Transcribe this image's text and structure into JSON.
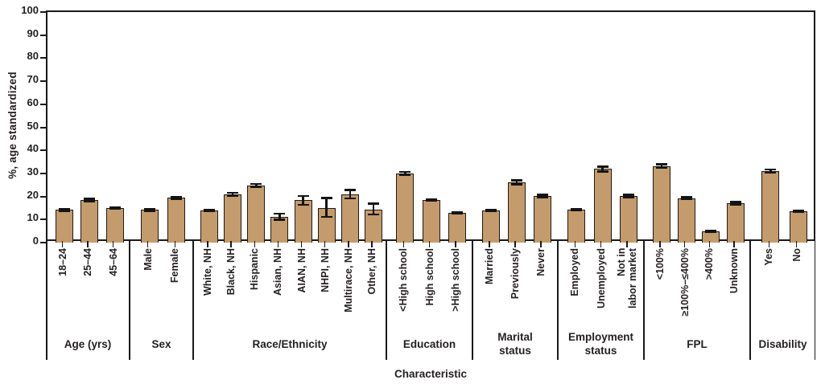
{
  "figure": {
    "bar_fill": "#c49b6c",
    "bar_outline": "#1f1a16",
    "error_color": "#141414",
    "axis_color": "#1a1a1a"
  },
  "chart_data": {
    "type": "bar",
    "title": "",
    "xlabel": "Characteristic",
    "ylabel": "%, age standardized",
    "ylim": [
      0,
      100
    ],
    "ytick_step": 10,
    "grid": false,
    "legend": false,
    "error_bars": true,
    "groups": [
      {
        "label": "Age (yrs)",
        "span": 104,
        "categories": [
          {
            "label": "18–24",
            "value": 14.2,
            "ci_low": 13.7,
            "ci_high": 14.7
          },
          {
            "label": "25–44",
            "value": 18.5,
            "ci_low": 18.0,
            "ci_high": 19.0
          },
          {
            "label": "45–64",
            "value": 15.1,
            "ci_low": 14.8,
            "ci_high": 15.4
          }
        ]
      },
      {
        "label": "Sex",
        "span": 79,
        "categories": [
          {
            "label": "Male",
            "value": 14.2,
            "ci_low": 13.8,
            "ci_high": 14.6
          },
          {
            "label": "Female",
            "value": 19.4,
            "ci_low": 19.0,
            "ci_high": 19.8
          }
        ]
      },
      {
        "label": "Race/Ethnicity",
        "span": 240,
        "categories": [
          {
            "label": "White, NH",
            "value": 13.9,
            "ci_low": 13.6,
            "ci_high": 14.2
          },
          {
            "label": "Black, NH",
            "value": 21.0,
            "ci_low": 20.4,
            "ci_high": 21.6
          },
          {
            "label": "Hispanic",
            "value": 24.8,
            "ci_low": 24.1,
            "ci_high": 25.5
          },
          {
            "label": "Asian, NH",
            "value": 11.1,
            "ci_low": 9.9,
            "ci_high": 12.6
          },
          {
            "label": "AIAN, NH",
            "value": 18.3,
            "ci_low": 16.4,
            "ci_high": 20.2
          },
          {
            "label": "NHPI, NH",
            "value": 14.9,
            "ci_low": 11.2,
            "ci_high": 19.3
          },
          {
            "label": "Multirace, NH",
            "value": 20.9,
            "ci_low": 19.2,
            "ci_high": 22.9
          },
          {
            "label": "Other, NH",
            "value": 14.2,
            "ci_low": 12.2,
            "ci_high": 16.9
          }
        ]
      },
      {
        "label": "Education",
        "span": 107,
        "categories": [
          {
            "label": "<High school",
            "value": 30.0,
            "ci_low": 29.4,
            "ci_high": 30.6
          },
          {
            "label": "High school",
            "value": 18.5,
            "ci_low": 18.1,
            "ci_high": 18.9
          },
          {
            "label": ">High school",
            "value": 12.9,
            "ci_low": 12.6,
            "ci_high": 13.2
          }
        ]
      },
      {
        "label": "Marital\nstatus",
        "span": 106,
        "categories": [
          {
            "label": "Married",
            "value": 13.9,
            "ci_low": 13.6,
            "ci_high": 14.2
          },
          {
            "label": "Previously",
            "value": 26.1,
            "ci_low": 25.2,
            "ci_high": 27.0
          },
          {
            "label": "Never",
            "value": 20.2,
            "ci_low": 19.7,
            "ci_high": 20.7
          }
        ]
      },
      {
        "label": "Employment\nstatus",
        "span": 107,
        "categories": [
          {
            "label": "Employed",
            "value": 14.3,
            "ci_low": 13.9,
            "ci_high": 14.7
          },
          {
            "label": "Unemployed",
            "value": 31.9,
            "ci_low": 30.9,
            "ci_high": 32.9
          },
          {
            "label": "Not in\nlabor market",
            "value": 20.2,
            "ci_low": 19.7,
            "ci_high": 20.7
          }
        ]
      },
      {
        "label": "FPL",
        "span": 132,
        "categories": [
          {
            "label": "<100%",
            "value": 33.2,
            "ci_low": 32.5,
            "ci_high": 33.9
          },
          {
            "label": "≥100%–≤400%",
            "value": 19.3,
            "ci_low": 18.9,
            "ci_high": 19.7
          },
          {
            "label": ">400%",
            "value": 5.0,
            "ci_low": 4.7,
            "ci_high": 5.3
          },
          {
            "label": "Unknown",
            "value": 17.1,
            "ci_low": 16.6,
            "ci_high": 17.6
          }
        ]
      },
      {
        "label": "Disability",
        "span": 81,
        "categories": [
          {
            "label": "Yes",
            "value": 31.0,
            "ci_low": 30.3,
            "ci_high": 31.7
          },
          {
            "label": "No",
            "value": 13.6,
            "ci_low": 13.3,
            "ci_high": 13.9
          }
        ]
      }
    ]
  }
}
